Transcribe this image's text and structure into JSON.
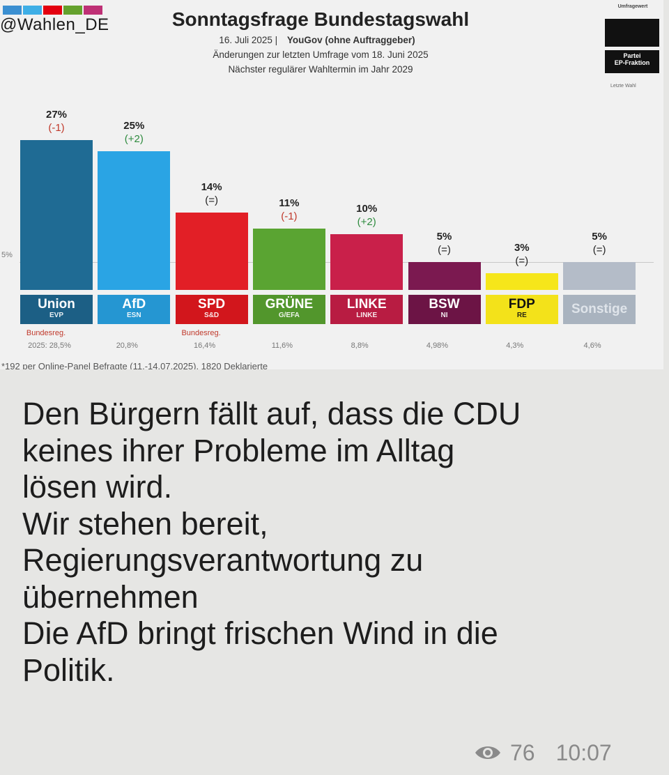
{
  "header": {
    "handle": "@Wahlen_DE",
    "title": "Sonntagsfrage Bundestagswahl",
    "subtitle_date": "16. Juli 2025 |",
    "subtitle_source": "YouGov (ohne Auftraggeber)",
    "subtitle_change": "Änderungen zur letzten Umfrage vom 18. Juni 2025",
    "subtitle_next": "Nächster regulärer Wahltermin im Jahr 2029",
    "legend_umfragewert": "Umfragewert",
    "legend_partei": "Partei",
    "legend_fraktion": "EP-Fraktion",
    "legend_letzte_wahl": "Letzte Wahl"
  },
  "stripe_colors": [
    "#3b8fd1",
    "#3eaee6",
    "#e3000f",
    "#64a12d",
    "#be3075"
  ],
  "chart_data": {
    "type": "bar",
    "title": "Sonntagsfrage Bundestagswahl",
    "categories": [
      "Union",
      "AfD",
      "SPD",
      "GRÜNE",
      "LINKE",
      "BSW",
      "FDP",
      "Sonstige"
    ],
    "groups": [
      "EVP",
      "ESN",
      "S&D",
      "G/EFA",
      "LINKE",
      "NI",
      "RE",
      ""
    ],
    "values": [
      27,
      25,
      14,
      11,
      10,
      5,
      3,
      5
    ],
    "value_labels": [
      "27%",
      "25%",
      "14%",
      "11%",
      "10%",
      "5%",
      "3%",
      "5%"
    ],
    "changes": [
      "(-1)",
      "(+2)",
      "(=)",
      "(-1)",
      "(+2)",
      "(=)",
      "(=)",
      "(=)"
    ],
    "change_colors": [
      "#c0392b",
      "#2e8b3e",
      "#222222",
      "#c0392b",
      "#2e8b3e",
      "#222222",
      "#222222",
      "#222222"
    ],
    "last_election": [
      "2025: 28,5%",
      "20,8%",
      "16,4%",
      "11,6%",
      "8,8%",
      "4,98%",
      "4,3%",
      "4,6%"
    ],
    "notes": [
      "Bundesreg.",
      "",
      "Bundesreg.",
      "",
      "",
      "",
      "",
      ""
    ],
    "colors": [
      "#1f6b94",
      "#2aa4e4",
      "#e21f26",
      "#5aa432",
      "#c9204a",
      "#7b1950",
      "#f6e61a",
      "#b4bcc8"
    ],
    "plate_colors": [
      "#1c5f85",
      "#2596d2",
      "#d2161c",
      "#52962c",
      "#b81c42",
      "#6c1445",
      "#f3e21a",
      "#a9b3bf"
    ],
    "plate_text_colors": [
      "#ffffff",
      "#ffffff",
      "#ffffff",
      "#ffffff",
      "#ffffff",
      "#ffffff",
      "#111111",
      "#dfe4ea"
    ],
    "threshold_label": "5%",
    "threshold": 5,
    "ylim": [
      0,
      27
    ],
    "footnote": "*192 per Online-Panel Befragte (11.-14.07.2025), 1820 Deklarierte"
  },
  "message": {
    "text": "Den Bürgern fällt auf, dass die CDU\nkeines ihrer Probleme im Alltag\nlösen wird.\nWir stehen bereit,\nRegierungsverantwortung zu\nübernehmen\nDie AfD bringt frischen Wind in die\nPolitik.",
    "views": "76",
    "time": "10:07",
    "views_icon": "eye-icon"
  }
}
